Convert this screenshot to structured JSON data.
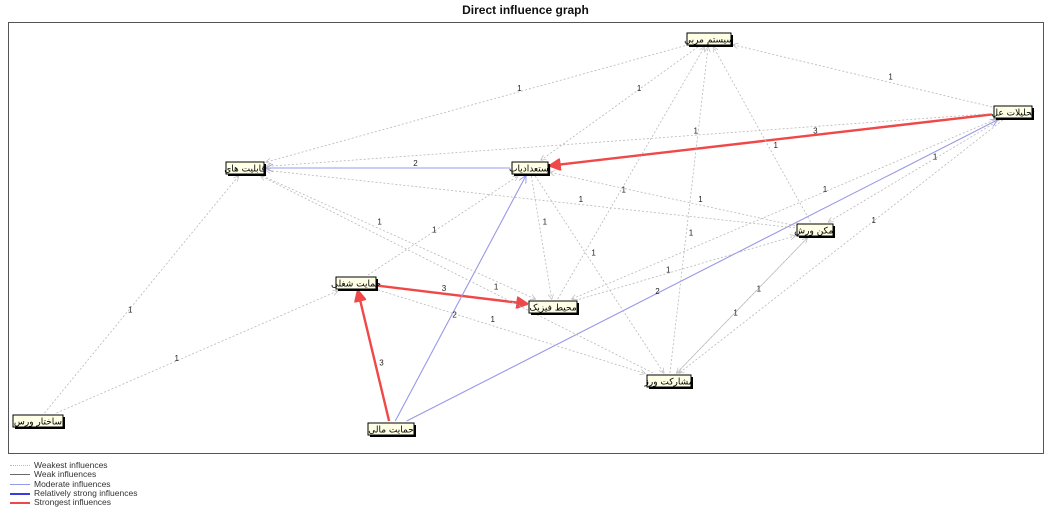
{
  "title": "Direct influence graph",
  "influence_levels": {
    "weakest": {
      "color": "#b8b8b8",
      "dashed": true,
      "label": "Weakest influences"
    },
    "weak": {
      "color": "#6a6a6a",
      "dashed": false,
      "label": "Weak influences"
    },
    "moderate": {
      "color": "#9898e8",
      "dashed": false,
      "label": "Moderate influences"
    },
    "strong": {
      "color": "#3a3ae0",
      "dashed": false,
      "label": "Relatively strong influences"
    },
    "strongest": {
      "color": "#f04848",
      "dashed": false,
      "label": "Strongest influences"
    }
  },
  "legend_order": [
    "weakest",
    "weak",
    "moderate",
    "strong",
    "strongest"
  ],
  "nodes": [
    {
      "id": "sistem",
      "label": "سیستم مربی"
    },
    {
      "id": "tahlil",
      "label": "تحلیلات عل"
    },
    {
      "id": "qabel",
      "label": "قابلیت های"
    },
    {
      "id": "estedad",
      "label": "استعدادیاب"
    },
    {
      "id": "emkan",
      "label": "امکن ورش"
    },
    {
      "id": "hemayat_shoghli",
      "label": "حمایت شغلی"
    },
    {
      "id": "mohit",
      "label": "محیط فیزیک"
    },
    {
      "id": "mosharekat",
      "label": "مشارکت ورز"
    },
    {
      "id": "sakhtar",
      "label": "ساختار ورس"
    },
    {
      "id": "hemayat_mali",
      "label": "حمایت مالی"
    }
  ],
  "edges": [
    {
      "from": "tahlil",
      "to": "estedad",
      "weight": "3",
      "level": "strongest"
    },
    {
      "from": "hemayat_shoghli",
      "to": "mohit",
      "weight": "3",
      "level": "strongest"
    },
    {
      "from": "hemayat_mali",
      "to": "hemayat_shoghli",
      "weight": "3",
      "level": "strongest"
    },
    {
      "from": "estedad",
      "to": "qabel",
      "weight": "2",
      "level": "moderate"
    },
    {
      "from": "hemayat_mali",
      "to": "tahlil",
      "weight": "2",
      "level": "moderate"
    },
    {
      "from": "hemayat_mali",
      "to": "estedad",
      "weight": "2",
      "level": "moderate"
    },
    {
      "from": "tahlil",
      "to": "sistem",
      "weight": "1",
      "level": "weakest"
    },
    {
      "from": "tahlil",
      "to": "qabel",
      "weight": "1",
      "level": "weakest"
    },
    {
      "from": "sistem",
      "to": "qabel",
      "weight": "1",
      "level": "weakest"
    },
    {
      "from": "sistem",
      "to": "estedad",
      "weight": "1",
      "level": "weakest"
    },
    {
      "from": "mohit",
      "to": "sistem",
      "weight": "1",
      "level": "weakest"
    },
    {
      "from": "emkan",
      "to": "sistem",
      "weight": "1",
      "level": "weakest"
    },
    {
      "from": "mosharekat",
      "to": "sistem",
      "weight": "1",
      "level": "weakest"
    },
    {
      "from": "emkan",
      "to": "estedad",
      "weight": "1",
      "level": "weakest"
    },
    {
      "from": "tahlil",
      "to": "mohit",
      "weight": "1",
      "level": "weakest"
    },
    {
      "from": "emkan",
      "to": "qabel",
      "weight": "1",
      "level": "weakest"
    },
    {
      "from": "mosharekat",
      "to": "qabel",
      "weight": "1",
      "level": "weakest"
    },
    {
      "from": "qabel",
      "to": "mohit",
      "weight": "1",
      "level": "weakest"
    },
    {
      "from": "estedad",
      "to": "mohit",
      "weight": "1",
      "level": "weakest"
    },
    {
      "from": "estedad",
      "to": "mosharekat",
      "weight": "1",
      "level": "weakest"
    },
    {
      "from": "emkan",
      "to": "mosharekat",
      "weight": "1",
      "level": "weakest"
    },
    {
      "from": "tahlil",
      "to": "mosharekat",
      "weight": "1",
      "level": "weakest"
    },
    {
      "from": "hemayat_shoghli",
      "to": "mosharekat",
      "weight": "1",
      "level": "weakest"
    },
    {
      "from": "sakhtar",
      "to": "qabel",
      "weight": "1",
      "level": "weakest"
    },
    {
      "from": "sakhtar",
      "to": "hemayat_shoghli",
      "weight": "1",
      "level": "weakest"
    },
    {
      "from": "hemayat_shoghli",
      "to": "estedad",
      "weight": "1",
      "level": "weakest"
    },
    {
      "from": "mosharekat",
      "to": "emkan",
      "weight": "1",
      "level": "weakest"
    },
    {
      "from": "mohit",
      "to": "emkan",
      "weight": "1",
      "level": "weakest"
    },
    {
      "from": "tahlil",
      "to": "emkan",
      "weight": "1",
      "level": "weakest"
    }
  ]
}
